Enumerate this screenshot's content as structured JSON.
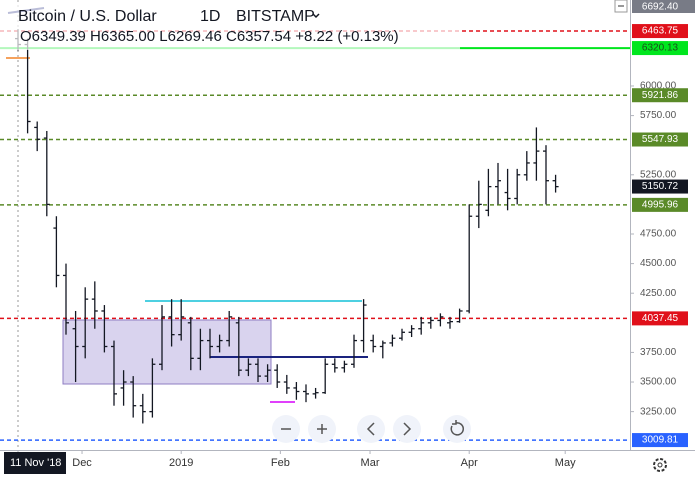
{
  "chart_data": {
    "type": "ohlc",
    "symbol": "Bitcoin / U.S. Dollar",
    "interval": "1D",
    "exchange": "BITSTAMP",
    "ohlc_legend": "O6349.39 H6365.00 L6269.46 C6357.54 +8.22 (+0.13%)",
    "color": "#131722",
    "open": [
      6400,
      6350,
      5650,
      5560,
      4800,
      4400,
      3950,
      3800,
      4200,
      4100,
      3800,
      3450,
      3500,
      3300,
      3250,
      3650,
      4050,
      3900,
      4000,
      3700,
      3850,
      3800,
      3850,
      4000,
      3600,
      3650,
      3550,
      3600,
      3500,
      3450,
      3420,
      3400,
      3410,
      3650,
      3620,
      3650,
      3850,
      3850,
      3800,
      3830,
      3870,
      3920,
      3950,
      4000,
      4020,
      4000,
      4010,
      4100,
      4900,
      4950,
      5150,
      5100,
      5050,
      5250,
      5350,
      5450,
      5200
    ],
    "high": [
      6480,
      6400,
      5700,
      5620,
      4900,
      4500,
      4100,
      4300,
      4350,
      4150,
      3850,
      3600,
      3550,
      3400,
      3700,
      4150,
      4200,
      4200,
      4050,
      3950,
      3950,
      3900,
      4100,
      4050,
      3700,
      3700,
      3650,
      3650,
      3560,
      3500,
      3480,
      3450,
      3700,
      3700,
      3680,
      3900,
      4200,
      3900,
      3850,
      3900,
      3950,
      3980,
      4050,
      4050,
      4080,
      4050,
      4120,
      5000,
      5200,
      5300,
      5350,
      5300,
      5300,
      5450,
      5650,
      5500,
      5250
    ],
    "low": [
      6300,
      5600,
      5450,
      4900,
      4300,
      3900,
      3500,
      3700,
      3950,
      3750,
      3300,
      3300,
      3200,
      3150,
      3200,
      3600,
      3800,
      3850,
      3600,
      3600,
      3700,
      3750,
      3800,
      3550,
      3550,
      3500,
      3500,
      3450,
      3400,
      3350,
      3330,
      3360,
      3400,
      3580,
      3580,
      3620,
      3750,
      3750,
      3700,
      3800,
      3850,
      3880,
      3900,
      3950,
      3970,
      3950,
      4000,
      4080,
      4800,
      4900,
      5000,
      4950,
      5000,
      5200,
      5200,
      5000,
      5100
    ],
    "close": [
      6350,
      5700,
      5550,
      5000,
      4400,
      4000,
      3800,
      4200,
      4100,
      3800,
      3400,
      3500,
      3300,
      3250,
      3650,
      4050,
      3900,
      4050,
      3700,
      3850,
      3800,
      3850,
      4050,
      3600,
      3650,
      3550,
      3600,
      3500,
      3450,
      3420,
      3400,
      3410,
      3650,
      3620,
      3650,
      3850,
      4150,
      3800,
      3830,
      3870,
      3920,
      3950,
      4000,
      4020,
      4050,
      4010,
      4100,
      4900,
      5000,
      5150,
      5200,
      5050,
      5250,
      5350,
      5450,
      5200,
      5150
    ],
    "xlim": [
      -1.875,
      63.75
    ],
    "xticks": [
      {
        "value": 0,
        "label": "11 Nov '18"
      },
      {
        "value": 6.67,
        "label": "Dec"
      },
      {
        "value": 17,
        "label": "2019"
      },
      {
        "value": 27.33,
        "label": "Feb"
      },
      {
        "value": 36.67,
        "label": "Mar"
      },
      {
        "value": 47,
        "label": "Apr"
      },
      {
        "value": 57,
        "label": "May"
      }
    ],
    "ylim": [
      2926,
      6726
    ],
    "yticks": [
      {
        "value": 3250,
        "label": "3250.00"
      },
      {
        "value": 3500,
        "label": "3500.00"
      },
      {
        "value": 3750,
        "label": "3750.00"
      },
      {
        "value": 4250,
        "label": "4250.00"
      },
      {
        "value": 4500,
        "label": "4500.00"
      },
      {
        "value": 4750,
        "label": "4750.00"
      },
      {
        "value": 5250,
        "label": "5250.00"
      },
      {
        "value": 5750,
        "label": "5750.00"
      },
      {
        "value": 6000,
        "label": "6000.00"
      }
    ],
    "levels": [
      {
        "value": 6463.75,
        "color": "#e0101a",
        "dash": true,
        "label_color": "#ffffff"
      },
      {
        "value": 6320.13,
        "color": "#00e61e",
        "dash": false,
        "label_color": "#1a4d1a"
      },
      {
        "value": 5921.86,
        "color": "#5a8a28",
        "dash": true,
        "label_color": "#ffffff"
      },
      {
        "value": 5547.93,
        "color": "#5a8a28",
        "dash": true,
        "label_color": "#ffffff"
      },
      {
        "value": 4995.96,
        "color": "#5a8a28",
        "dash": true,
        "label_color": "#ffffff"
      },
      {
        "value": 4037.45,
        "color": "#e0101a",
        "dash": true,
        "label_color": "#ffffff"
      },
      {
        "value": 3009.81,
        "color": "#2962ff",
        "dash": true,
        "label_color": "#ffffff"
      }
    ],
    "last_price": 5150.72,
    "top_tag": {
      "value": 6692.4,
      "label": "6692.40"
    }
  }
}
